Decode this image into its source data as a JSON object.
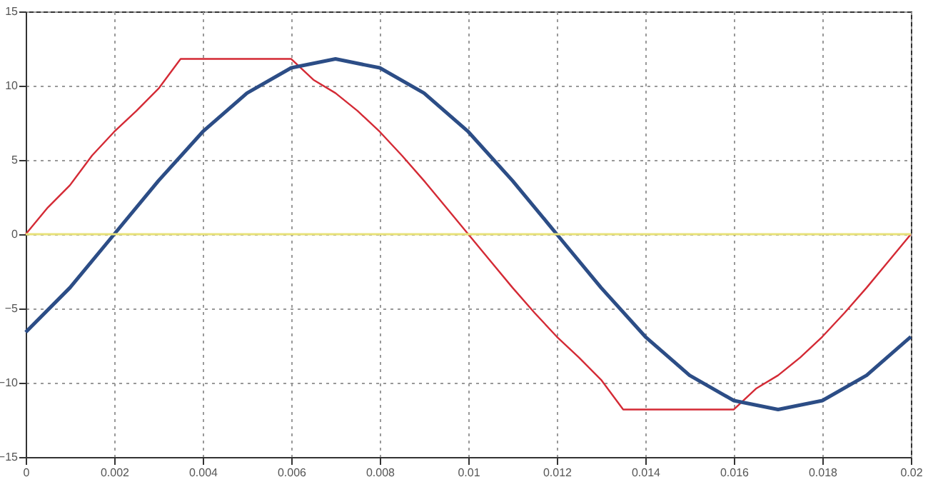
{
  "chart_data": {
    "type": "line",
    "xlim": [
      0,
      0.02
    ],
    "ylim": [
      -15,
      15
    ],
    "xticks": [
      0,
      0.002,
      0.004,
      0.006,
      0.008,
      0.01,
      0.012,
      0.014,
      0.016,
      0.018,
      0.02
    ],
    "yticks": [
      -15,
      -10,
      -5,
      0,
      5,
      10,
      15
    ],
    "grid": true,
    "line_style": "solid",
    "ref_lines": [
      {
        "axis": "y",
        "value": 0,
        "color": "#e8e27a"
      }
    ],
    "series": [
      {
        "color": "#d42a35",
        "x": [
          0,
          0.0005,
          0.001,
          0.0015,
          0.002,
          0.0025,
          0.003,
          0.0035,
          0.004,
          0.0045,
          0.005,
          0.0055,
          0.006,
          0.0065,
          0.007,
          0.0075,
          0.008,
          0.0085,
          0.009,
          0.0095,
          0.01,
          0.0105,
          0.011,
          0.0115,
          0.012,
          0.0125,
          0.013,
          0.0135,
          0.014,
          0.0145,
          0.015,
          0.0155,
          0.016,
          0.0165,
          0.017,
          0.0175,
          0.018,
          0.0185,
          0.019,
          0.0195,
          0.02
        ],
        "values": [
          0,
          1.8,
          3.3,
          5.3,
          6.9,
          8.3,
          9.8,
          11.8,
          11.8,
          11.8,
          11.8,
          11.8,
          11.8,
          10.4,
          9.5,
          8.3,
          6.9,
          5.3,
          3.6,
          1.8,
          0,
          -1.8,
          -3.6,
          -5.3,
          -6.9,
          -8.3,
          -9.8,
          -11.8,
          -11.8,
          -11.8,
          -11.8,
          -11.8,
          -11.8,
          -10.4,
          -9.5,
          -8.3,
          -6.9,
          -5.3,
          -3.6,
          -1.8,
          0
        ]
      },
      {
        "color": "#2c4d86",
        "x": [
          0,
          0.001,
          0.002,
          0.003,
          0.004,
          0.005,
          0.006,
          0.007,
          0.008,
          0.009,
          0.01,
          0.011,
          0.012,
          0.013,
          0.014,
          0.015,
          0.016,
          0.017,
          0.018,
          0.019,
          0.02
        ],
        "values": [
          -6.6,
          -3.6,
          0,
          3.6,
          6.9,
          9.5,
          11.2,
          11.8,
          11.2,
          9.5,
          6.9,
          3.6,
          0,
          -3.6,
          -6.9,
          -9.5,
          -11.2,
          -11.8,
          -11.2,
          -9.5,
          -6.9
        ]
      }
    ]
  }
}
